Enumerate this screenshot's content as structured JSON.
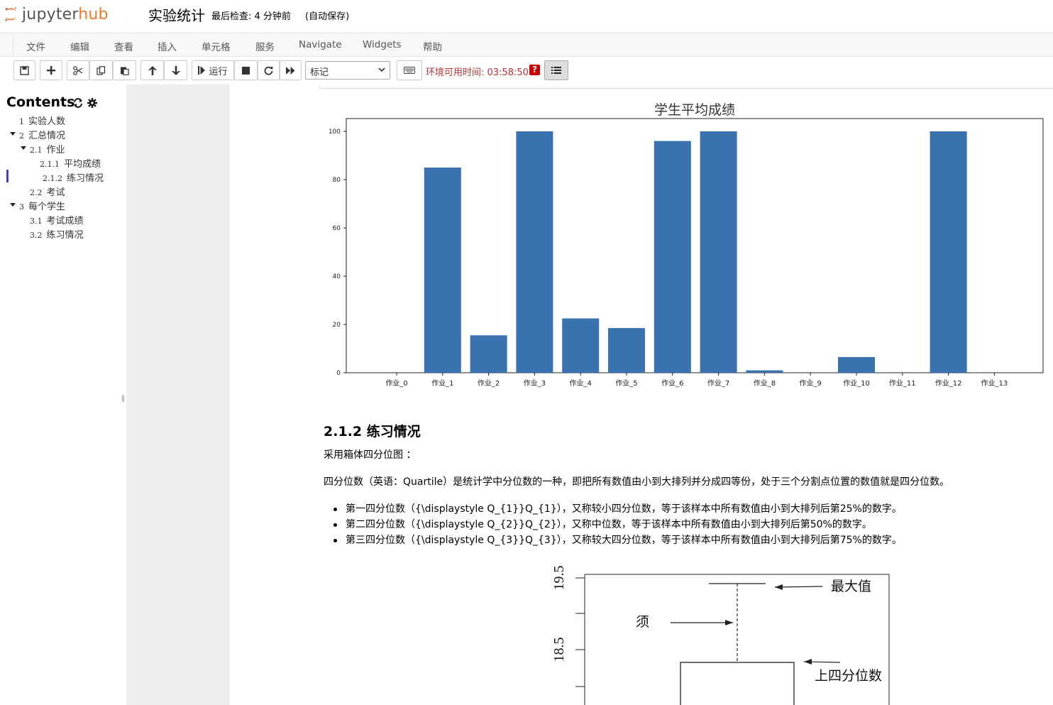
{
  "header": {
    "logo_text_a": "jupyter",
    "logo_text_b": "hub",
    "notebook_name": "实验统计",
    "checkpoint": "最后检查: 4 分钟前",
    "autosave": "(自动保存)"
  },
  "menubar": {
    "items": [
      "文件",
      "编辑",
      "查看",
      "插入",
      "单元格",
      "服务",
      "Navigate",
      "Widgets",
      "帮助"
    ]
  },
  "toolbar": {
    "run_label": "运行",
    "cell_type": "标记",
    "env_timer": "环境可用时间: 03:58:50",
    "help_badge": "?",
    "icons": [
      "save-icon",
      "plus-icon",
      "cut-icon",
      "copy-icon",
      "paste-icon",
      "arrow-up-icon",
      "arrow-down-icon",
      "run-step-icon",
      "stop-icon",
      "restart-icon",
      "fast-forward-icon",
      "keyboard-icon",
      "toc-list-icon"
    ]
  },
  "toc": {
    "title": "Contents",
    "items": [
      {
        "num": "1",
        "label": "实验人数"
      },
      {
        "num": "2",
        "label": "汇总情况"
      },
      {
        "num": "2.1",
        "label": "作业"
      },
      {
        "num": "2.1.1",
        "label": "平均成绩"
      },
      {
        "num": "2.1.2",
        "label": "练习情况"
      },
      {
        "num": "2.2",
        "label": "考试"
      },
      {
        "num": "3",
        "label": "每个学生"
      },
      {
        "num": "3.1",
        "label": "考试成绩"
      },
      {
        "num": "3.2",
        "label": "练习情况"
      }
    ],
    "active_index": 4
  },
  "chart_data": {
    "type": "bar",
    "title": "学生平均成绩",
    "categories": [
      "作业_0",
      "作业_1",
      "作业_2",
      "作业_3",
      "作业_4",
      "作业_5",
      "作业_6",
      "作业_7",
      "作业_8",
      "作业_9",
      "作业_10",
      "作业_11",
      "作业_12",
      "作业_13"
    ],
    "values": [
      0,
      85,
      15.5,
      100,
      22.5,
      18.5,
      96,
      100,
      1,
      0,
      6.5,
      0,
      100,
      0
    ],
    "ylim": [
      0,
      100
    ],
    "yticks": [
      0,
      20,
      40,
      60,
      80,
      100
    ],
    "bar_color": "#3a72b0",
    "grid": false
  },
  "content": {
    "heading": "2.1.2  练习情况",
    "intro": "采用箱体四分位图 ：",
    "definition": "四分位数（英语：Quartile）是统计学中分位数的一种，即把所有数值由小到大排列并分成四等份，处于三个分割点位置的数值就是四分位数。",
    "bullets": [
      "第一四分位数（{\\displaystyle Q_{1}}Q_{1}），又称较小四分位数，等于该样本中所有数值由小到大排列后第25%的数字。",
      "第二四分位数（{\\displaystyle Q_{2}}Q_{2}），又称中位数，等于该样本中所有数值由小到大排列后第50%的数字。",
      "第三四分位数（{\\displaystyle Q_{3}}Q_{3}），又称较大四分位数，等于该样本中所有数值由小到大排列后第75%的数字。"
    ]
  },
  "boxplot_figure": {
    "ytick_top": "19.5",
    "ytick_mid": "18.5",
    "label_max": "最大值",
    "label_whisker": "须",
    "label_upper_quartile": "上四分位数"
  }
}
